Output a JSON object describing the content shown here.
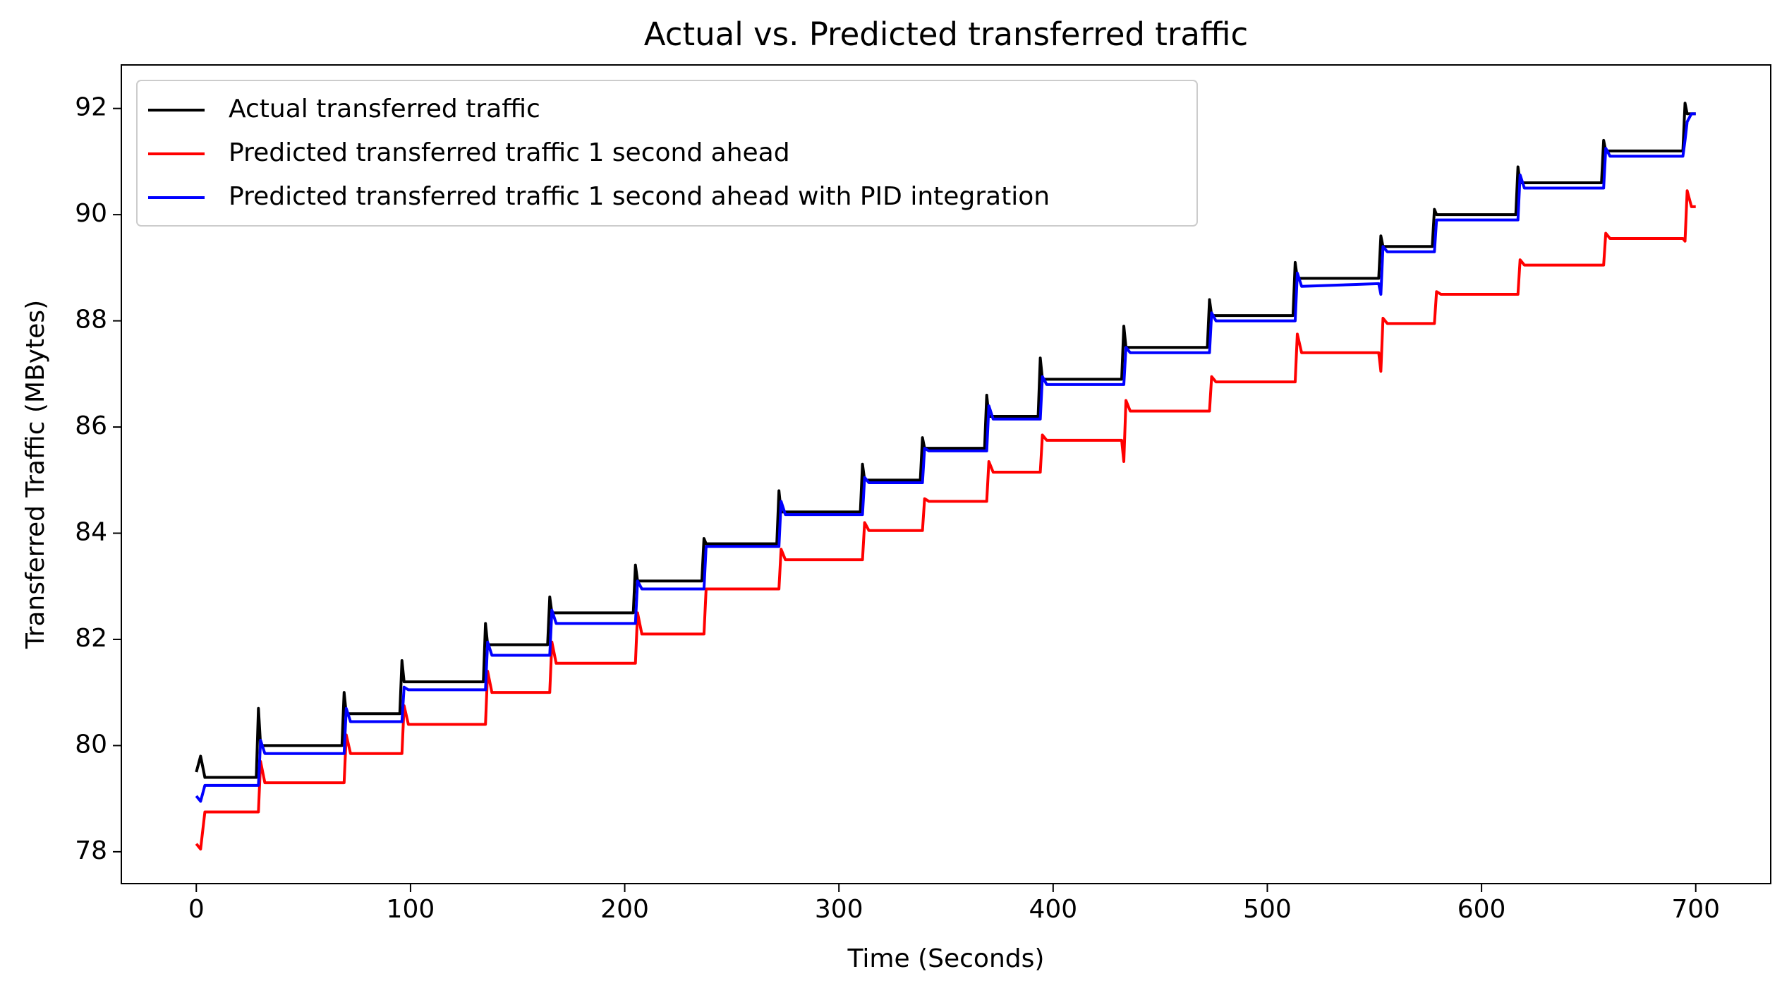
{
  "chart_data": {
    "type": "line",
    "title": "Actual vs. Predicted transferred traffic",
    "xlabel": "Time (Seconds)",
    "ylabel": "Transferred Traffic (MBytes)",
    "x": [
      0,
      2,
      4,
      28,
      29,
      30,
      32,
      68,
      69,
      70,
      72,
      95,
      96,
      97,
      99,
      134,
      135,
      136,
      138,
      164,
      165,
      166,
      168,
      204,
      205,
      206,
      208,
      236,
      237,
      238,
      240,
      271,
      272,
      273,
      275,
      310,
      311,
      312,
      314,
      338,
      339,
      340,
      342,
      368,
      369,
      370,
      372,
      393,
      394,
      395,
      397,
      432,
      433,
      434,
      436,
      472,
      473,
      474,
      476,
      512,
      513,
      514,
      516,
      552,
      553,
      554,
      556,
      577,
      578,
      579,
      581,
      616,
      617,
      618,
      620,
      656,
      657,
      658,
      660,
      694,
      695,
      696,
      698,
      700
    ],
    "series": [
      {
        "name": "Actual transferred traffic",
        "color": "#000000",
        "values": [
          79.5,
          79.8,
          79.4,
          79.4,
          80.7,
          80.0,
          80.0,
          80.0,
          81.0,
          80.6,
          80.6,
          80.6,
          81.6,
          81.2,
          81.2,
          81.2,
          82.3,
          81.9,
          81.9,
          81.9,
          82.8,
          82.5,
          82.5,
          82.5,
          83.4,
          83.1,
          83.1,
          83.1,
          83.9,
          83.8,
          83.8,
          83.8,
          84.8,
          84.4,
          84.4,
          84.4,
          85.3,
          85.0,
          85.0,
          85.0,
          85.8,
          85.6,
          85.6,
          85.6,
          86.6,
          86.2,
          86.2,
          86.2,
          87.3,
          86.9,
          86.9,
          86.9,
          87.9,
          87.5,
          87.5,
          87.5,
          88.4,
          88.1,
          88.1,
          88.1,
          89.1,
          88.8,
          88.8,
          88.8,
          89.6,
          89.4,
          89.4,
          89.4,
          90.1,
          90.0,
          90.0,
          90.0,
          90.9,
          90.6,
          90.6,
          90.6,
          91.4,
          91.2,
          91.2,
          91.2,
          92.1,
          91.9,
          91.9,
          91.9
        ]
      },
      {
        "name": "Predicted transferred traffic 1 second ahead",
        "color": "#ff0000",
        "values": [
          78.15,
          78.05,
          78.75,
          78.75,
          78.75,
          79.7,
          79.3,
          79.3,
          79.3,
          80.2,
          79.85,
          79.85,
          79.85,
          80.75,
          80.4,
          80.4,
          80.4,
          81.4,
          81.0,
          81.0,
          81.0,
          81.95,
          81.55,
          81.55,
          81.55,
          82.5,
          82.1,
          82.1,
          82.1,
          82.95,
          82.95,
          82.95,
          82.95,
          83.7,
          83.5,
          83.5,
          83.5,
          84.2,
          84.05,
          84.05,
          84.05,
          84.65,
          84.6,
          84.6,
          84.6,
          85.35,
          85.15,
          85.15,
          85.15,
          85.85,
          85.75,
          85.75,
          85.35,
          86.5,
          86.3,
          86.3,
          86.3,
          86.95,
          86.85,
          86.85,
          86.85,
          87.75,
          87.4,
          87.4,
          87.05,
          88.05,
          87.95,
          87.95,
          87.95,
          88.55,
          88.5,
          88.5,
          88.5,
          89.15,
          89.05,
          89.05,
          89.05,
          89.65,
          89.55,
          89.55,
          89.5,
          90.45,
          90.15,
          90.15
        ]
      },
      {
        "name": "Predicted transferred traffic 1 second ahead with PID integration",
        "color": "#0000ff",
        "values": [
          79.05,
          78.95,
          79.25,
          79.25,
          79.25,
          80.1,
          79.85,
          79.85,
          79.85,
          80.7,
          80.45,
          80.45,
          80.45,
          81.1,
          81.05,
          81.05,
          81.05,
          81.95,
          81.7,
          81.7,
          81.7,
          82.55,
          82.3,
          82.3,
          82.3,
          83.1,
          82.95,
          82.95,
          82.95,
          83.75,
          83.75,
          83.75,
          83.75,
          84.6,
          84.35,
          84.35,
          84.35,
          85.05,
          84.95,
          84.95,
          84.95,
          85.6,
          85.55,
          85.55,
          85.55,
          86.4,
          86.15,
          86.15,
          86.15,
          86.95,
          86.8,
          86.8,
          86.8,
          87.5,
          87.4,
          87.4,
          87.4,
          88.15,
          88.0,
          88.0,
          88.0,
          88.9,
          88.65,
          88.7,
          88.5,
          89.4,
          89.3,
          89.3,
          89.3,
          89.9,
          89.9,
          89.9,
          89.9,
          90.75,
          90.5,
          90.5,
          90.5,
          91.25,
          91.1,
          91.1,
          91.4,
          91.75,
          91.9,
          91.9
        ]
      }
    ],
    "xlim": [
      -35,
      735
    ],
    "xticks": [
      0,
      100,
      200,
      300,
      400,
      500,
      600,
      700
    ],
    "ylim": [
      77.4,
      92.82
    ],
    "yticks": [
      78,
      80,
      82,
      84,
      86,
      88,
      90,
      92
    ],
    "legend": "upper left",
    "grid": false
  }
}
